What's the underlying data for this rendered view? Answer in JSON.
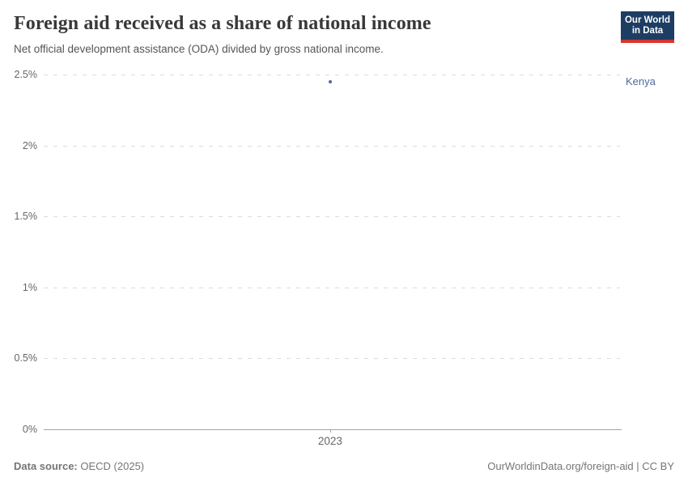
{
  "header": {
    "title": "Foreign aid received as a share of national income",
    "subtitle": "Net official development assistance (ODA) divided by gross national income.",
    "logo": {
      "line1": "Our World",
      "line2": "in Data"
    }
  },
  "chart_data": {
    "type": "scatter",
    "title": "Foreign aid received as a share of national income",
    "subtitle": "Net official development assistance (ODA) divided by gross national income.",
    "series": [
      {
        "name": "Kenya",
        "color": "#4c6a9c",
        "points": [
          {
            "year": 2023,
            "value_pct": 2.45
          }
        ]
      }
    ],
    "x_tick_labels": [
      "2023"
    ],
    "y_tick_labels": [
      "2.5%",
      "2%",
      "1.5%",
      "1%",
      "0.5%",
      "0%"
    ],
    "ylim": [
      0,
      2.5
    ],
    "grid": "horizontal-dashed",
    "legend_position": "right-of-point"
  },
  "footer": {
    "datasource_bold": "Data source:",
    "datasource_text": "OECD (2025)",
    "attribution": "OurWorldinData.org/foreign-aid | CC BY"
  },
  "colors": {
    "series": "#4c6a9c",
    "logo_bg": "#1d3d63",
    "logo_accent": "#d7352e",
    "gridline": "#dcdcdc",
    "axis": "#a3a3a3"
  }
}
